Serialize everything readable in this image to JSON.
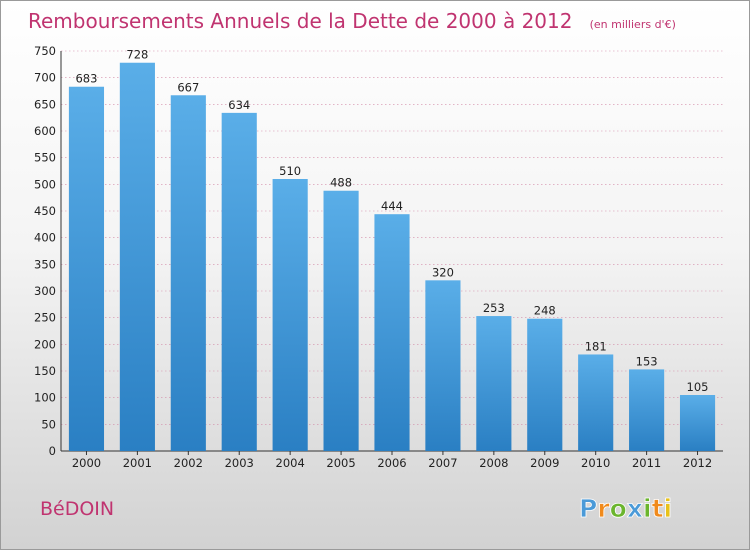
{
  "commune": "BéDOIN",
  "logo": {
    "text": "Proxiti",
    "letters": [
      "P",
      "r",
      "o",
      "x",
      "i",
      "t",
      "i"
    ],
    "colors": [
      "#4a9ad8",
      "#f08a1c",
      "#6bb52e",
      "#4a9ad8",
      "#6bb52e",
      "#f08a1c",
      "#e8c21a"
    ]
  },
  "chart_data": {
    "type": "bar",
    "title": "Remboursements Annuels de la Dette de 2000 à 2012",
    "subtitle": "(en milliers d'€)",
    "categories": [
      "2000",
      "2001",
      "2002",
      "2003",
      "2004",
      "2005",
      "2006",
      "2007",
      "2008",
      "2009",
      "2010",
      "2011",
      "2012"
    ],
    "values": [
      683,
      728,
      667,
      634,
      510,
      488,
      444,
      320,
      253,
      248,
      181,
      153,
      105
    ],
    "ylim": [
      0,
      750
    ],
    "yticks": [
      0,
      50,
      100,
      150,
      200,
      250,
      300,
      350,
      400,
      450,
      500,
      550,
      600,
      650,
      700,
      750
    ],
    "grid": true,
    "bar_color_top": "#5aaee8",
    "bar_color_bottom": "#2a7fc3",
    "grid_color": "#d48aa8"
  }
}
